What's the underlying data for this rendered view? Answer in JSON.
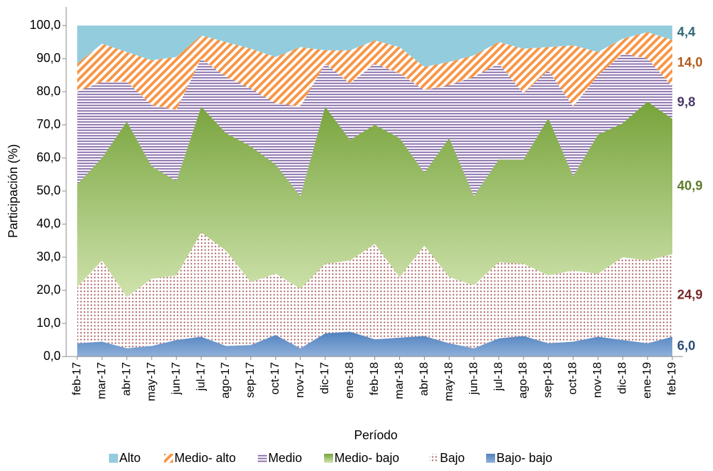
{
  "chart_data": {
    "type": "area",
    "stacked": true,
    "x_label": "Período",
    "y_label": "Participación (%)",
    "categories": [
      "feb-17",
      "mar-17",
      "abr-17",
      "may-17",
      "jun-17",
      "jul-17",
      "ago-17",
      "sep-17",
      "oct-17",
      "nov-17",
      "dic-17",
      "ene-18",
      "feb-18",
      "mar-18",
      "abr-18",
      "may-18",
      "jun-18",
      "jul-18",
      "ago-18",
      "sep-18",
      "oct-18",
      "nov-18",
      "dic-18",
      "ene-19",
      "feb-19"
    ],
    "ylim": [
      0,
      100
    ],
    "yticks": [
      {
        "value": 0,
        "label": "0,0"
      },
      {
        "value": 10,
        "label": "10,0"
      },
      {
        "value": 20,
        "label": "20,0"
      },
      {
        "value": 30,
        "label": "30,0"
      },
      {
        "value": 40,
        "label": "40,0"
      },
      {
        "value": 50,
        "label": "50,0"
      },
      {
        "value": 60,
        "label": "60,0"
      },
      {
        "value": 70,
        "label": "70,0"
      },
      {
        "value": 80,
        "label": "80,0"
      },
      {
        "value": 90,
        "label": "90,0"
      },
      {
        "value": 100,
        "label": "100,0"
      }
    ],
    "legend": "bottom",
    "series": [
      {
        "name": "Alto",
        "color": "#93cddd",
        "label_color": "#31697a",
        "values": [
          11.5,
          5.5,
          8,
          10.5,
          9.5,
          3,
          5,
          7,
          9.5,
          6.5,
          7.5,
          7.5,
          4.5,
          6.5,
          12.5,
          11,
          9,
          5,
          7,
          6.5,
          6,
          8,
          4,
          2,
          4.4
        ],
        "value_labels": [
          null,
          null,
          null,
          null,
          null,
          null,
          null,
          null,
          null,
          null,
          null,
          null,
          null,
          null,
          null,
          null,
          null,
          null,
          null,
          null,
          null,
          null,
          null,
          null,
          "4,4"
        ]
      },
      {
        "name": "Medio- alto",
        "color": "#f79646",
        "label_color": "#b35c1e",
        "values": [
          8.5,
          11.5,
          9,
          13.5,
          16,
          7,
          10.5,
          12,
          14,
          18,
          4,
          10,
          7,
          8,
          7,
          7,
          6.5,
          6.5,
          13.5,
          7,
          18.5,
          7,
          4.5,
          8,
          14.0
        ],
        "value_labels": [
          null,
          null,
          null,
          null,
          null,
          null,
          null,
          null,
          null,
          null,
          null,
          null,
          null,
          null,
          null,
          null,
          null,
          null,
          null,
          null,
          null,
          null,
          null,
          null,
          "14,0"
        ]
      },
      {
        "name": "Medio",
        "color": "#8064a2",
        "label_color": "#4b3a6b",
        "values": [
          28,
          23,
          12,
          18.5,
          21.5,
          14.5,
          17,
          17.5,
          18.5,
          27,
          13,
          17,
          18.5,
          19.5,
          25,
          16,
          36,
          29,
          20,
          14.5,
          21,
          18,
          21,
          13,
          9.8
        ],
        "value_labels": [
          null,
          null,
          null,
          null,
          null,
          null,
          null,
          null,
          null,
          null,
          null,
          null,
          null,
          null,
          null,
          null,
          null,
          null,
          null,
          null,
          null,
          null,
          null,
          null,
          "9,8"
        ]
      },
      {
        "name": "Medio- bajo",
        "color": "#77a33b",
        "label_color": "#5f7d2b",
        "values": [
          31,
          31,
          53,
          34,
          28.5,
          38,
          35.5,
          41,
          33,
          28,
          47.5,
          36.5,
          36,
          42,
          22,
          42,
          27,
          31,
          31.5,
          47.5,
          28.5,
          42,
          40.5,
          48,
          40.9
        ],
        "value_labels": [
          null,
          null,
          null,
          null,
          null,
          null,
          null,
          null,
          null,
          null,
          null,
          null,
          null,
          null,
          null,
          null,
          null,
          null,
          null,
          null,
          null,
          null,
          null,
          null,
          "40,9"
        ]
      },
      {
        "name": "Bajo",
        "color": "#a0504e",
        "label_color": "#7a2a2a",
        "values": [
          17,
          24.5,
          15.5,
          20.3,
          19.5,
          31.5,
          28.8,
          19,
          18.5,
          18,
          21,
          21.5,
          28.8,
          18.3,
          27.3,
          20,
          19,
          23,
          21.8,
          20.5,
          21.5,
          19,
          25,
          25,
          24.9
        ],
        "value_labels": [
          null,
          null,
          null,
          null,
          null,
          null,
          null,
          null,
          null,
          null,
          null,
          null,
          null,
          null,
          null,
          null,
          null,
          null,
          null,
          null,
          null,
          null,
          null,
          null,
          "24,9"
        ]
      },
      {
        "name": "Bajo- bajo",
        "color": "#4f81bd",
        "label_color": "#2f4e7a",
        "values": [
          4,
          4.5,
          2.5,
          3.2,
          5,
          6,
          3.2,
          3.5,
          6.5,
          2.5,
          7,
          7.5,
          5.2,
          5.7,
          6.2,
          4,
          2.5,
          5.5,
          6.2,
          4,
          4.5,
          6,
          5,
          4,
          6.0
        ],
        "value_labels": [
          null,
          null,
          null,
          null,
          null,
          null,
          null,
          null,
          null,
          null,
          null,
          null,
          null,
          null,
          null,
          null,
          null,
          null,
          null,
          null,
          null,
          null,
          null,
          null,
          "6,0"
        ]
      }
    ]
  }
}
